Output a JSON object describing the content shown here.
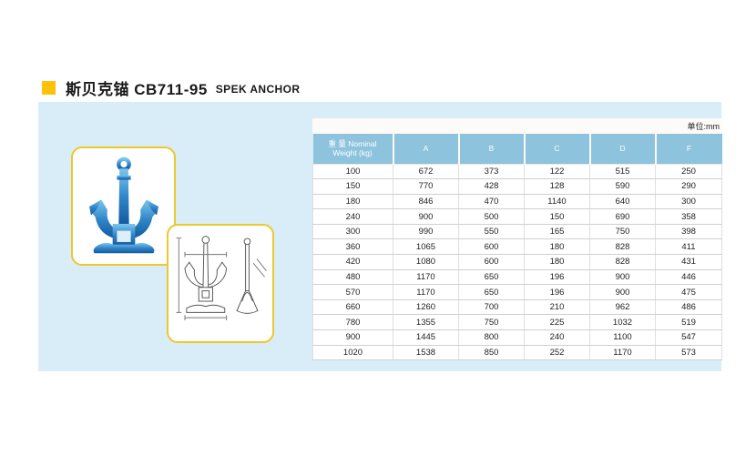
{
  "page": {
    "title_main": "斯贝克锚 CB711-95",
    "title_en": "SPEK ANCHOR",
    "unit_label": "单位:mm"
  },
  "colors": {
    "accent_yellow": "#fdc10a",
    "figure_border_gold": "#eec72a",
    "panel_blue": "#d9edf9",
    "header_blue": "#8ec3dd",
    "anchor_blue": "#1f71b5"
  },
  "table": {
    "weight_header_line1": "重 量 Nominal",
    "weight_header_line2": "Weight (kg)",
    "columns": [
      "A",
      "B",
      "C",
      "D",
      "F"
    ],
    "rows": [
      {
        "weight": "100",
        "values": [
          "672",
          "373",
          "122",
          "515",
          "250"
        ]
      },
      {
        "weight": "150",
        "values": [
          "770",
          "428",
          "128",
          "590",
          "290"
        ]
      },
      {
        "weight": "180",
        "values": [
          "846",
          "470",
          "1140",
          "640",
          "300"
        ]
      },
      {
        "weight": "240",
        "values": [
          "900",
          "500",
          "150",
          "690",
          "358"
        ]
      },
      {
        "weight": "300",
        "values": [
          "990",
          "550",
          "165",
          "750",
          "398"
        ]
      },
      {
        "weight": "360",
        "values": [
          "1065",
          "600",
          "180",
          "828",
          "411"
        ]
      },
      {
        "weight": "420",
        "values": [
          "1080",
          "600",
          "180",
          "828",
          "431"
        ]
      },
      {
        "weight": "480",
        "values": [
          "1170",
          "650",
          "196",
          "900",
          "446"
        ]
      },
      {
        "weight": "570",
        "values": [
          "1170",
          "650",
          "196",
          "900",
          "475"
        ]
      },
      {
        "weight": "660",
        "values": [
          "1260",
          "700",
          "210",
          "962",
          "486"
        ]
      },
      {
        "weight": "780",
        "values": [
          "1355",
          "750",
          "225",
          "1032",
          "519"
        ]
      },
      {
        "weight": "900",
        "values": [
          "1445",
          "800",
          "240",
          "1100",
          "547"
        ]
      },
      {
        "weight": "1020",
        "values": [
          "1538",
          "850",
          "252",
          "1170",
          "573"
        ]
      }
    ]
  }
}
